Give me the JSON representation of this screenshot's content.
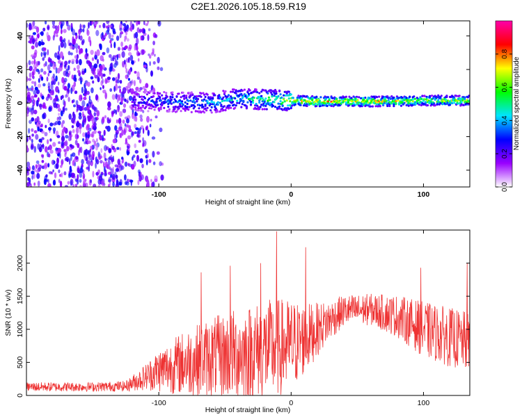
{
  "chart_data": [
    {
      "type": "heatmap",
      "title": "C2E1.2026.105.18.59.R19",
      "xlabel": "Height of straight line (km)",
      "ylabel": "Frequency (Hz)",
      "xlim": [
        -200,
        135
      ],
      "ylim": [
        -50,
        49
      ],
      "xticks": [
        -100,
        0,
        100
      ],
      "yticks": [
        -40,
        -20,
        0,
        20,
        40
      ],
      "colorbar": {
        "label": "Normalized spectral amplitude",
        "range": [
          0,
          1
        ],
        "ticks": [
          0.0,
          0.2,
          0.4,
          0.6,
          0.8
        ],
        "colors": [
          "#ffffff",
          "#9900ff",
          "#0000ff",
          "#00e5ff",
          "#00ff00",
          "#ffff00",
          "#ff0000",
          "#ff00aa"
        ]
      },
      "noise_region_x": [
        -200,
        -105
      ],
      "signal_track": [
        {
          "x": -120,
          "y": 1.5,
          "amp": 0.3
        },
        {
          "x": -100,
          "y": 1.0,
          "amp": 0.35
        },
        {
          "x": -80,
          "y": 0.5,
          "amp": 0.4
        },
        {
          "x": -60,
          "y": 0.0,
          "amp": 0.45
        },
        {
          "x": -40,
          "y": 3.0,
          "amp": 0.5
        },
        {
          "x": -20,
          "y": 2.0,
          "amp": 0.6
        },
        {
          "x": 0,
          "y": 1.5,
          "amp": 0.75
        },
        {
          "x": 20,
          "y": 1.0,
          "amp": 0.85
        },
        {
          "x": 40,
          "y": 1.0,
          "amp": 0.8
        },
        {
          "x": 60,
          "y": 1.0,
          "amp": 0.8
        },
        {
          "x": 80,
          "y": 1.0,
          "amp": 0.75
        },
        {
          "x": 100,
          "y": 1.5,
          "amp": 0.7
        },
        {
          "x": 120,
          "y": 1.5,
          "amp": 0.7
        },
        {
          "x": 135,
          "y": 1.5,
          "amp": 0.7
        }
      ]
    },
    {
      "type": "line",
      "title": "",
      "xlabel": "Height of straight line (km)",
      "ylabel": "SNR (10 * v/v)",
      "xlim": [
        -200,
        135
      ],
      "ylim": [
        0,
        2500
      ],
      "xticks": [
        -100,
        0,
        100
      ],
      "yticks": [
        0,
        500,
        1000,
        1500,
        2000
      ],
      "color": "#ee3333",
      "envelope_x": [
        -200,
        -150,
        -125,
        -110,
        -100,
        -80,
        -60,
        -40,
        -20,
        -10,
        0,
        10,
        20,
        30,
        40,
        60,
        80,
        100,
        120,
        135
      ],
      "envelope_mean": [
        130,
        130,
        140,
        280,
        380,
        500,
        580,
        630,
        700,
        720,
        760,
        850,
        1000,
        1150,
        1280,
        1300,
        1200,
        1000,
        880,
        800
      ],
      "envelope_amp": [
        70,
        70,
        80,
        200,
        330,
        500,
        600,
        700,
        750,
        750,
        700,
        550,
        400,
        300,
        240,
        240,
        320,
        420,
        450,
        450
      ],
      "spikes": [
        {
          "x": -11,
          "y": 2480
        },
        {
          "x": 11,
          "y": 2240
        },
        {
          "x": -23,
          "y": 2000
        },
        {
          "x": -46,
          "y": 1960
        },
        {
          "x": -68,
          "y": 1860
        },
        {
          "x": 133,
          "y": 2000
        },
        {
          "x": 98,
          "y": 1930
        }
      ]
    }
  ]
}
